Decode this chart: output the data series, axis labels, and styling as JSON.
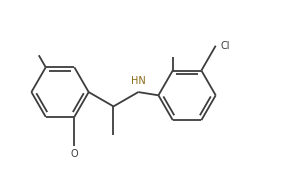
{
  "background": "#ffffff",
  "bond_color": "#3d3d3d",
  "nh_color": "#8B6914",
  "line_width": 1.3,
  "font_size": 7.0,
  "fig_width": 2.91,
  "fig_height": 1.86,
  "dpi": 100,
  "xlim": [
    -0.5,
    5.8
  ],
  "ylim": [
    -1.4,
    2.2
  ]
}
